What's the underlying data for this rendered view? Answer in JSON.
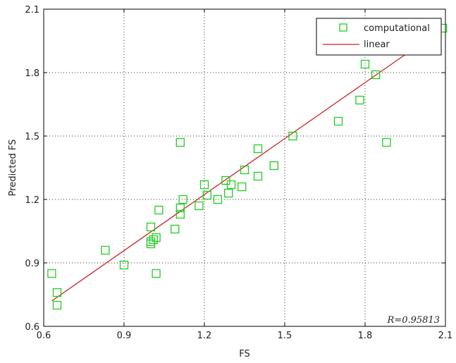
{
  "chart_data": {
    "type": "scatter",
    "xlabel": "FS",
    "ylabel": "Predicted FS",
    "xlim": [
      0.6,
      2.1
    ],
    "ylim": [
      0.6,
      2.1
    ],
    "xticks": [
      "0.6",
      "0.9",
      "1.2",
      "1.5",
      "1.8",
      "2.1"
    ],
    "yticks": [
      "0.6",
      "0.9",
      "1.2",
      "1.5",
      "1.8",
      "2.1"
    ],
    "grid": true,
    "legend_position": "top-right",
    "annotation": "R=0.95813",
    "series": [
      {
        "name": "computational",
        "kind": "scatter",
        "marker": "square",
        "color": "#22cc22",
        "points": [
          [
            0.63,
            0.85
          ],
          [
            0.65,
            0.76
          ],
          [
            0.65,
            0.7
          ],
          [
            0.83,
            0.96
          ],
          [
            0.9,
            0.89
          ],
          [
            1.0,
            1.07
          ],
          [
            1.0,
            1.0
          ],
          [
            1.0,
            0.99
          ],
          [
            1.01,
            1.01
          ],
          [
            1.02,
            1.02
          ],
          [
            1.02,
            0.85
          ],
          [
            1.03,
            1.15
          ],
          [
            1.09,
            1.06
          ],
          [
            1.11,
            1.47
          ],
          [
            1.11,
            1.16
          ],
          [
            1.11,
            1.13
          ],
          [
            1.12,
            1.2
          ],
          [
            1.18,
            1.17
          ],
          [
            1.2,
            1.27
          ],
          [
            1.21,
            1.22
          ],
          [
            1.25,
            1.2
          ],
          [
            1.28,
            1.29
          ],
          [
            1.29,
            1.23
          ],
          [
            1.3,
            1.27
          ],
          [
            1.34,
            1.26
          ],
          [
            1.35,
            1.34
          ],
          [
            1.4,
            1.44
          ],
          [
            1.4,
            1.31
          ],
          [
            1.46,
            1.36
          ],
          [
            1.53,
            1.5
          ],
          [
            1.7,
            1.57
          ],
          [
            1.78,
            1.67
          ],
          [
            1.8,
            1.84
          ],
          [
            1.84,
            1.79
          ],
          [
            1.88,
            1.47
          ],
          [
            2.09,
            2.01
          ]
        ]
      },
      {
        "name": "linear",
        "kind": "line",
        "color": "#cc2222",
        "points": [
          [
            0.63,
            0.72
          ],
          [
            2.08,
            2.0
          ]
        ]
      }
    ]
  }
}
